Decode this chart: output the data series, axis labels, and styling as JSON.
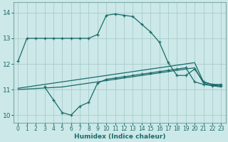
{
  "xlabel": "Humidex (Indice chaleur)",
  "ylabel": "",
  "xlim": [
    -0.5,
    23.5
  ],
  "ylim": [
    9.7,
    14.4
  ],
  "xticks": [
    0,
    1,
    2,
    3,
    4,
    5,
    6,
    7,
    8,
    9,
    10,
    11,
    12,
    13,
    14,
    15,
    16,
    17,
    18,
    19,
    20,
    21,
    22,
    23
  ],
  "yticks": [
    10,
    11,
    12,
    13,
    14
  ],
  "background_color": "#cce8e8",
  "grid_color": "#aacccc",
  "line_color": "#1a6b6b",
  "line1": {
    "x": [
      0,
      1,
      2,
      3,
      4,
      5,
      6,
      7,
      8,
      9,
      10,
      11,
      12,
      13,
      14,
      15,
      16,
      17,
      18,
      19,
      20,
      21,
      22,
      23
    ],
    "y": [
      12.1,
      13.0,
      13.0,
      13.0,
      13.0,
      13.0,
      13.0,
      13.0,
      13.0,
      13.15,
      13.9,
      13.95,
      13.9,
      13.85,
      13.55,
      13.25,
      12.85,
      12.05,
      11.55,
      11.55,
      11.8,
      11.3,
      11.2,
      11.2
    ],
    "markers": true
  },
  "line2": {
    "x": [
      3,
      4,
      5,
      6,
      7,
      8,
      9,
      10,
      11,
      12,
      13,
      14,
      15,
      16,
      17,
      18,
      19,
      20,
      21,
      22,
      23
    ],
    "y": [
      11.1,
      10.6,
      10.1,
      10.0,
      10.35,
      10.5,
      11.25,
      11.4,
      11.45,
      11.5,
      11.55,
      11.6,
      11.65,
      11.7,
      11.75,
      11.8,
      11.85,
      11.3,
      11.2,
      11.15,
      11.15
    ],
    "markers": true
  },
  "line3": {
    "x": [
      0,
      1,
      2,
      3,
      4,
      5,
      6,
      7,
      8,
      9,
      10,
      11,
      12,
      13,
      14,
      15,
      16,
      17,
      18,
      19,
      20,
      21,
      22,
      23
    ],
    "y": [
      11.05,
      11.1,
      11.15,
      11.2,
      11.25,
      11.3,
      11.35,
      11.4,
      11.45,
      11.5,
      11.55,
      11.6,
      11.65,
      11.7,
      11.75,
      11.8,
      11.85,
      11.9,
      11.95,
      12.0,
      12.05,
      11.3,
      11.2,
      11.15
    ],
    "markers": false
  },
  "line4": {
    "x": [
      0,
      1,
      2,
      3,
      4,
      5,
      6,
      7,
      8,
      9,
      10,
      11,
      12,
      13,
      14,
      15,
      16,
      17,
      18,
      19,
      20,
      21,
      22,
      23
    ],
    "y": [
      11.0,
      11.02,
      11.04,
      11.06,
      11.08,
      11.1,
      11.15,
      11.2,
      11.25,
      11.3,
      11.35,
      11.4,
      11.45,
      11.5,
      11.55,
      11.6,
      11.65,
      11.7,
      11.75,
      11.8,
      11.85,
      11.25,
      11.15,
      11.1
    ],
    "markers": false
  }
}
